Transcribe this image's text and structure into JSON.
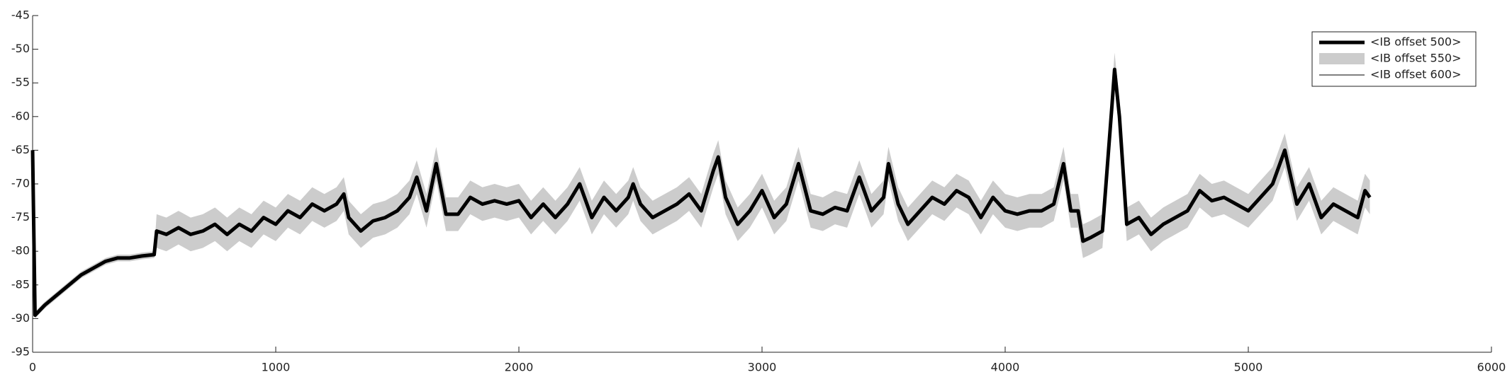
{
  "chart_data": {
    "type": "line",
    "x": [
      0,
      10,
      50,
      100,
      150,
      200,
      250,
      300,
      350,
      400,
      450,
      500,
      510,
      550,
      600,
      650,
      700,
      750,
      800,
      850,
      900,
      950,
      1000,
      1050,
      1100,
      1150,
      1200,
      1250,
      1280,
      1300,
      1350,
      1400,
      1450,
      1500,
      1550,
      1580,
      1620,
      1660,
      1700,
      1750,
      1800,
      1850,
      1900,
      1950,
      2000,
      2050,
      2100,
      2150,
      2200,
      2250,
      2300,
      2350,
      2400,
      2450,
      2470,
      2500,
      2550,
      2600,
      2650,
      2700,
      2750,
      2800,
      2820,
      2850,
      2900,
      2950,
      3000,
      3050,
      3100,
      3150,
      3200,
      3250,
      3300,
      3350,
      3400,
      3450,
      3500,
      3520,
      3560,
      3600,
      3650,
      3700,
      3750,
      3800,
      3850,
      3900,
      3950,
      4000,
      4050,
      4100,
      4150,
      4200,
      4240,
      4270,
      4300,
      4320,
      4350,
      4400,
      4440,
      4450,
      4470,
      4500,
      4550,
      4600,
      4650,
      4700,
      4750,
      4800,
      4850,
      4900,
      4950,
      5000,
      5050,
      5100,
      5150,
      5200,
      5250,
      5300,
      5350,
      5400,
      5450,
      5480,
      5500
    ],
    "series": [
      {
        "name": "<IB offset 500>",
        "color": "#000000",
        "values": [
          -65,
          -89.5,
          -88,
          -86.5,
          -85,
          -83.5,
          -82.5,
          -81.5,
          -81,
          -81,
          -80.7,
          -80.5,
          -77,
          -77.5,
          -76.5,
          -77.5,
          -77,
          -76,
          -77.5,
          -76,
          -77,
          -75,
          -76,
          -74,
          -75,
          -73,
          -74,
          -73,
          -71.5,
          -75,
          -77,
          -75.5,
          -75,
          -74,
          -72,
          -69,
          -74,
          -67,
          -74.5,
          -74.5,
          -72,
          -73,
          -72.5,
          -73,
          -72.5,
          -75,
          -73,
          -75,
          -73,
          -70,
          -75,
          -72,
          -74,
          -72,
          -70,
          -73,
          -75,
          -74,
          -73,
          -71.5,
          -74,
          -68,
          -66,
          -72,
          -76,
          -74,
          -71,
          -75,
          -73,
          -67,
          -74,
          -74.5,
          -73.5,
          -74,
          -69,
          -74,
          -72,
          -67,
          -73,
          -76,
          -74,
          -72,
          -73,
          -71,
          -72,
          -75,
          -72,
          -74,
          -74.5,
          -74,
          -74,
          -73,
          -67,
          -74,
          -74,
          -78.5,
          -78,
          -77,
          -58,
          -53,
          -60,
          -76,
          -75,
          -77.5,
          -76,
          -75,
          -74,
          -71,
          -72.5,
          -72,
          -73,
          -74,
          -72,
          -70,
          -65,
          -73,
          -70,
          -75,
          -73,
          -74,
          -75,
          -71,
          -72
        ]
      },
      {
        "name": "<IB offset 550>",
        "color": "#cccccc",
        "low": [
          -65.5,
          -90,
          -88.5,
          -87,
          -85.5,
          -84,
          -83,
          -82,
          -81.5,
          -81.5,
          -81.2,
          -81,
          -79.5,
          -80,
          -79,
          -80,
          -79.5,
          -78.5,
          -80,
          -78.5,
          -79.5,
          -77.5,
          -78.5,
          -76.5,
          -77.5,
          -75.5,
          -76.5,
          -75.5,
          -74,
          -77.5,
          -79.5,
          -78,
          -77.5,
          -76.5,
          -74.5,
          -71.5,
          -76.5,
          -69.5,
          -77,
          -77,
          -74.5,
          -75.5,
          -75,
          -75.5,
          -75,
          -77.5,
          -75.5,
          -77.5,
          -75.5,
          -72.5,
          -77.5,
          -74.5,
          -76.5,
          -74.5,
          -72.5,
          -75.5,
          -77.5,
          -76.5,
          -75.5,
          -74,
          -76.5,
          -70.5,
          -68.5,
          -74.5,
          -78.5,
          -76.5,
          -73.5,
          -77.5,
          -75.5,
          -69.5,
          -76.5,
          -77,
          -76,
          -76.5,
          -71.5,
          -76.5,
          -74.5,
          -69.5,
          -75.5,
          -78.5,
          -76.5,
          -74.5,
          -75.5,
          -73.5,
          -74.5,
          -77.5,
          -74.5,
          -76.5,
          -77,
          -76.5,
          -76.5,
          -75.5,
          -69.5,
          -76.5,
          -76.5,
          -81,
          -80.5,
          -79.5,
          -60.5,
          -55.5,
          -62.5,
          -78.5,
          -77.5,
          -80,
          -78.5,
          -77.5,
          -76.5,
          -73.5,
          -75,
          -74.5,
          -75.5,
          -76.5,
          -74.5,
          -72.5,
          -67.5,
          -75.5,
          -72.5,
          -77.5,
          -75.5,
          -76.5,
          -77.5,
          -73.5,
          -74.5
        ],
        "high": [
          -64.5,
          -89,
          -87.5,
          -86,
          -84.5,
          -83,
          -82,
          -81,
          -80.5,
          -80.5,
          -80.2,
          -80,
          -74.5,
          -75,
          -74,
          -75,
          -74.5,
          -73.5,
          -75,
          -73.5,
          -74.5,
          -72.5,
          -73.5,
          -71.5,
          -72.5,
          -70.5,
          -71.5,
          -70.5,
          -69,
          -72.5,
          -74.5,
          -73,
          -72.5,
          -71.5,
          -69.5,
          -66.5,
          -71.5,
          -64.5,
          -72,
          -72,
          -69.5,
          -70.5,
          -70,
          -70.5,
          -70,
          -72.5,
          -70.5,
          -72.5,
          -70.5,
          -67.5,
          -72.5,
          -69.5,
          -71.5,
          -69.5,
          -67.5,
          -70.5,
          -72.5,
          -71.5,
          -70.5,
          -69,
          -71.5,
          -65.5,
          -63.5,
          -69.5,
          -73.5,
          -71.5,
          -68.5,
          -72.5,
          -70.5,
          -64.5,
          -71.5,
          -72,
          -71,
          -71.5,
          -66.5,
          -71.5,
          -69.5,
          -64.5,
          -70.5,
          -73.5,
          -71.5,
          -69.5,
          -70.5,
          -68.5,
          -69.5,
          -72.5,
          -69.5,
          -71.5,
          -72,
          -71.5,
          -71.5,
          -70.5,
          -64.5,
          -71.5,
          -71.5,
          -76,
          -75.5,
          -74.5,
          -55.5,
          -50.5,
          -57.5,
          -73.5,
          -72.5,
          -75,
          -73.5,
          -72.5,
          -71.5,
          -68.5,
          -70,
          -69.5,
          -70.5,
          -71.5,
          -69.5,
          -67.5,
          -62.5,
          -70.5,
          -67.5,
          -72.5,
          -70.5,
          -71.5,
          -72.5,
          -68.5,
          -69.5
        ]
      },
      {
        "name": "<IB offset 600>",
        "color": "#000000",
        "values": [
          -65,
          -89.5,
          -88,
          -86.5,
          -85,
          -83.5,
          -82.5,
          -81.5,
          -81,
          -81,
          -80.7,
          -80.5,
          -77,
          -77.5,
          -76.5,
          -77.5,
          -77,
          -76,
          -77.5,
          -76,
          -77,
          -75,
          -76,
          -74,
          -75,
          -73,
          -74,
          -73,
          -71.5,
          -75,
          -77,
          -75.5,
          -75,
          -74,
          -72,
          -69,
          -74,
          -67,
          -74.5,
          -74.5,
          -72,
          -73,
          -72.5,
          -73,
          -72.5,
          -75,
          -73,
          -75,
          -73,
          -70,
          -75,
          -72,
          -74,
          -72,
          -70,
          -73,
          -75,
          -74,
          -73,
          -71.5,
          -74,
          -68,
          -66,
          -72,
          -76,
          -74,
          -71,
          -75,
          -73,
          -67,
          -74,
          -74.5,
          -73.5,
          -74,
          -69,
          -74,
          -72,
          -67,
          -73,
          -76,
          -74,
          -72,
          -73,
          -71,
          -72,
          -75,
          -72,
          -74,
          -74.5,
          -74,
          -74,
          -73,
          -67,
          -74,
          -74,
          -78.5,
          -78,
          -77,
          -58,
          -53,
          -60,
          -76,
          -75,
          -77.5,
          -76,
          -75,
          -74,
          -71,
          -72.5,
          -72,
          -73,
          -74,
          -72,
          -70,
          -65,
          -73,
          -70,
          -75,
          -73,
          -74,
          -75,
          -71,
          -72
        ]
      }
    ],
    "xlim": [
      0,
      6000
    ],
    "xticks": [
      0,
      1000,
      2000,
      3000,
      4000,
      5000,
      6000
    ],
    "ylim": [
      -95,
      -45
    ],
    "yticks": [
      -95,
      -90,
      -85,
      -80,
      -75,
      -70,
      -65,
      -60,
      -55,
      -50,
      -45
    ],
    "legend": "upper right"
  }
}
